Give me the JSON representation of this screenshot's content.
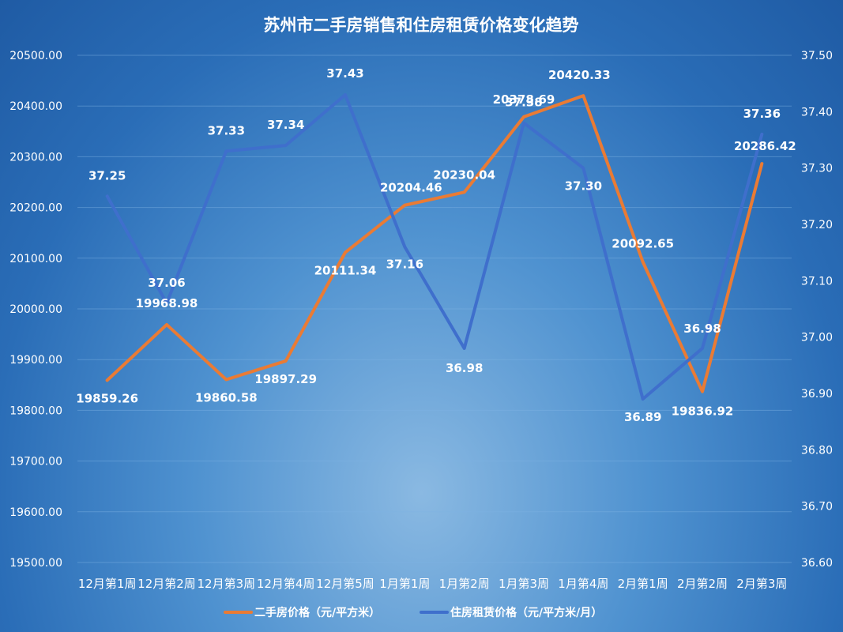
{
  "chart_data": {
    "type": "line",
    "title": "苏州市二手房销售和住房租赁价格变化趋势",
    "categories": [
      "12月第1周",
      "12月第2周",
      "12月第3周",
      "12月第4周",
      "12月第5周",
      "1月第1周",
      "1月第2周",
      "1月第3周",
      "1月第4周",
      "2月第1周",
      "2月第2周",
      "2月第3周"
    ],
    "left_axis": {
      "ylim": [
        19500,
        20500
      ],
      "ticks": [
        "19500.00",
        "19600.00",
        "19700.00",
        "19800.00",
        "19900.00",
        "20000.00",
        "20100.00",
        "20200.00",
        "20300.00",
        "20400.00",
        "20500.00"
      ]
    },
    "right_axis": {
      "ylim": [
        36.6,
        37.5
      ],
      "ticks": [
        "36.60",
        "36.70",
        "36.80",
        "36.90",
        "37.00",
        "37.10",
        "37.20",
        "37.30",
        "37.40",
        "37.50"
      ]
    },
    "series": [
      {
        "name": "二手房价格（元/平方米）",
        "axis": "left",
        "color": "#ea7b34",
        "values": [
          19859.26,
          19968.98,
          19860.58,
          19897.29,
          20111.34,
          20204.46,
          20230.04,
          20378.69,
          20420.33,
          20092.65,
          19836.92,
          20286.42
        ],
        "labels": [
          "19859.26",
          "19968.98",
          "19860.58",
          "19897.29",
          "20111.34",
          "20204.46",
          "20230.04",
          "20378.69",
          "20420.33",
          "20092.65",
          "19836.92",
          "20286.42"
        ]
      },
      {
        "name": "住房租赁价格（元/平方米/月）",
        "axis": "right",
        "color": "#3f6fcc",
        "values": [
          37.25,
          37.06,
          37.33,
          37.34,
          37.43,
          37.16,
          36.98,
          37.38,
          37.3,
          36.89,
          36.98,
          37.36
        ],
        "labels": [
          "37.25",
          "37.06",
          "37.33",
          "37.34",
          "37.43",
          "37.16",
          "36.98",
          "37.38",
          "37.30",
          "36.89",
          "36.98",
          "37.36"
        ]
      }
    ],
    "grid": true,
    "legend_position": "bottom"
  }
}
